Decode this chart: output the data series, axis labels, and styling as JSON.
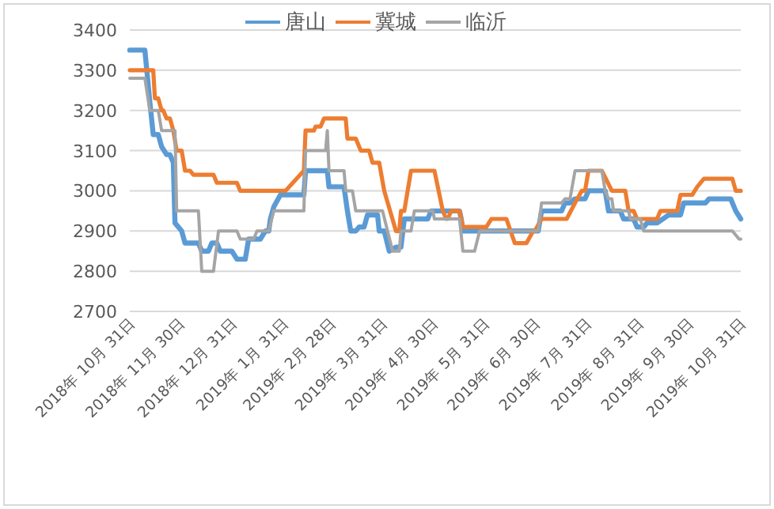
{
  "chart_data": {
    "type": "line",
    "legend": "top",
    "grid": "y",
    "line_style": "solid",
    "marker": "none",
    "ylim": [
      2700,
      3400
    ],
    "yticks": [
      2700,
      2800,
      2900,
      3000,
      3100,
      3200,
      3300,
      3400
    ],
    "xlim": [
      "2018-10-31",
      "2019-10-31"
    ],
    "xticks": [
      {
        "value": "2018-10-31",
        "label": "2018年 10月 31日"
      },
      {
        "value": "2018-11-30",
        "label": "2018年 11月 30日"
      },
      {
        "value": "2018-12-31",
        "label": "2018年 12月 31日"
      },
      {
        "value": "2019-01-31",
        "label": "2019年 1月 31日"
      },
      {
        "value": "2019-02-28",
        "label": "2019年 2月 28日"
      },
      {
        "value": "2019-03-31",
        "label": "2019年 3月 31日"
      },
      {
        "value": "2019-04-30",
        "label": "2019年 4月 30日"
      },
      {
        "value": "2019-05-31",
        "label": "2019年 5月 31日"
      },
      {
        "value": "2019-06-30",
        "label": "2019年 6月 30日"
      },
      {
        "value": "2019-07-31",
        "label": "2019年 7月 31日"
      },
      {
        "value": "2019-08-31",
        "label": "2019年 8月 31日"
      },
      {
        "value": "2019-09-30",
        "label": "2019年 9月 30日"
      },
      {
        "value": "2019-10-31",
        "label": "2019年 10月 31日"
      }
    ],
    "series": [
      {
        "name": "唐山",
        "color": "#5b9bd5",
        "x": [
          "2018-10-31",
          "2018-11-09",
          "2018-11-12",
          "2018-11-14",
          "2018-11-17",
          "2018-11-19",
          "2018-11-22",
          "2018-11-24",
          "2018-11-26",
          "2018-11-27",
          "2018-12-01",
          "2018-12-03",
          "2018-12-11",
          "2018-12-13",
          "2018-12-17",
          "2018-12-19",
          "2018-12-22",
          "2018-12-24",
          "2018-12-31",
          "2019-01-03",
          "2019-01-08",
          "2019-01-10",
          "2019-01-17",
          "2019-01-20",
          "2019-01-22",
          "2019-01-23",
          "2019-01-25",
          "2019-01-29",
          "2019-02-12",
          "2019-02-13",
          "2019-02-26",
          "2019-02-27",
          "2019-03-08",
          "2019-03-09",
          "2019-03-10",
          "2019-03-12",
          "2019-03-15",
          "2019-03-17",
          "2019-03-20",
          "2019-03-22",
          "2019-03-28",
          "2019-03-29",
          "2019-04-01",
          "2019-04-04",
          "2019-04-08",
          "2019-04-11",
          "2019-04-13",
          "2019-04-27",
          "2019-04-29",
          "2019-05-16",
          "2019-05-17",
          "2019-05-18",
          "2019-07-02",
          "2019-07-04",
          "2019-07-16",
          "2019-07-18",
          "2019-07-21",
          "2019-07-24",
          "2019-07-30",
          "2019-08-01",
          "2019-08-11",
          "2019-08-13",
          "2019-08-20",
          "2019-08-22",
          "2019-08-28",
          "2019-08-30",
          "2019-09-03",
          "2019-09-05",
          "2019-09-11",
          "2019-09-18",
          "2019-09-25",
          "2019-09-27",
          "2019-10-10",
          "2019-10-12",
          "2019-10-25",
          "2019-10-28",
          "2019-10-31"
        ],
        "values": [
          3350,
          3350,
          3220,
          3140,
          3140,
          3110,
          3090,
          3090,
          3070,
          2920,
          2900,
          2870,
          2870,
          2850,
          2850,
          2870,
          2870,
          2850,
          2850,
          2830,
          2830,
          2880,
          2880,
          2900,
          2900,
          2930,
          2960,
          2990,
          2990,
          3050,
          3050,
          3010,
          3010,
          2980,
          2950,
          2900,
          2900,
          2910,
          2910,
          2940,
          2940,
          2900,
          2900,
          2850,
          2860,
          2860,
          2930,
          2930,
          2950,
          2950,
          2930,
          2900,
          2900,
          2950,
          2950,
          2970,
          2970,
          2980,
          2980,
          3000,
          3000,
          2950,
          2950,
          2930,
          2930,
          2910,
          2910,
          2920,
          2920,
          2940,
          2940,
          2970,
          2970,
          2980,
          2980,
          2950,
          2930
        ]
      },
      {
        "name": "冀城",
        "color": "#ed7d31",
        "x": [
          "2018-10-31",
          "2018-11-14",
          "2018-11-15",
          "2018-11-17",
          "2018-11-19",
          "2018-11-20",
          "2018-11-22",
          "2018-11-24",
          "2018-11-26",
          "2018-11-28",
          "2018-12-01",
          "2018-12-03",
          "2018-12-06",
          "2018-12-08",
          "2018-12-20",
          "2018-12-22",
          "2019-01-03",
          "2019-01-05",
          "2019-02-01",
          "2019-02-12",
          "2019-02-13",
          "2019-02-18",
          "2019-02-19",
          "2019-02-22",
          "2019-02-24",
          "2019-03-09",
          "2019-03-10",
          "2019-03-15",
          "2019-03-18",
          "2019-03-23",
          "2019-03-25",
          "2019-03-29",
          "2019-04-01",
          "2019-04-08",
          "2019-04-10",
          "2019-04-11",
          "2019-04-13",
          "2019-04-15",
          "2019-04-17",
          "2019-05-01",
          "2019-05-06",
          "2019-05-08",
          "2019-05-09",
          "2019-05-11",
          "2019-05-16",
          "2019-05-18",
          "2019-06-01",
          "2019-06-04",
          "2019-06-13",
          "2019-06-18",
          "2019-06-25",
          "2019-06-29",
          "2019-06-30",
          "2019-07-04",
          "2019-07-19",
          "2019-07-24",
          "2019-07-28",
          "2019-07-30",
          "2019-08-01",
          "2019-08-09",
          "2019-08-15",
          "2019-08-23",
          "2019-08-25",
          "2019-08-28",
          "2019-08-30",
          "2019-09-11",
          "2019-09-13",
          "2019-09-23",
          "2019-09-25",
          "2019-10-02",
          "2019-10-05",
          "2019-10-09",
          "2019-10-26",
          "2019-10-28",
          "2019-10-31"
        ],
        "values": [
          3300,
          3300,
          3230,
          3230,
          3200,
          3200,
          3180,
          3180,
          3150,
          3100,
          3100,
          3050,
          3050,
          3040,
          3040,
          3020,
          3020,
          3000,
          3000,
          3050,
          3150,
          3150,
          3160,
          3160,
          3180,
          3180,
          3130,
          3130,
          3100,
          3100,
          3070,
          3070,
          3000,
          2900,
          2900,
          2950,
          2950,
          3000,
          3050,
          3050,
          2950,
          2930,
          2930,
          2950,
          2950,
          2910,
          2910,
          2930,
          2930,
          2870,
          2870,
          2900,
          2900,
          2930,
          2930,
          2970,
          3000,
          3000,
          3050,
          3050,
          3000,
          3000,
          2950,
          2950,
          2930,
          2930,
          2950,
          2950,
          2990,
          2990,
          3010,
          3030,
          3030,
          3000,
          3000
        ]
      },
      {
        "name": "临沂",
        "color": "#a5a5a5",
        "x": [
          "2018-10-31",
          "2018-11-09",
          "2018-11-12",
          "2018-11-17",
          "2018-11-19",
          "2018-11-27",
          "2018-11-28",
          "2018-12-11",
          "2018-12-13",
          "2018-12-20",
          "2018-12-23",
          "2019-01-03",
          "2019-01-05",
          "2019-01-13",
          "2019-01-15",
          "2019-01-22",
          "2019-01-25",
          "2019-02-12",
          "2019-02-13",
          "2019-02-25",
          "2019-02-26",
          "2019-02-27",
          "2019-03-08",
          "2019-03-09",
          "2019-03-13",
          "2019-03-15",
          "2019-03-31",
          "2019-04-03",
          "2019-04-06",
          "2019-04-10",
          "2019-04-11",
          "2019-04-17",
          "2019-04-19",
          "2019-04-30",
          "2019-05-01",
          "2019-05-16",
          "2019-05-18",
          "2019-05-25",
          "2019-05-28",
          "2019-07-02",
          "2019-07-04",
          "2019-07-16",
          "2019-07-18",
          "2019-07-21",
          "2019-07-24",
          "2019-08-09",
          "2019-08-11",
          "2019-08-13",
          "2019-08-15",
          "2019-08-16",
          "2019-08-25",
          "2019-08-26",
          "2019-09-01",
          "2019-09-03",
          "2019-10-26",
          "2019-10-30",
          "2019-10-31"
        ],
        "values": [
          3280,
          3280,
          3200,
          3200,
          3150,
          3150,
          2950,
          2950,
          2800,
          2800,
          2900,
          2900,
          2880,
          2880,
          2900,
          2900,
          2950,
          2950,
          3100,
          3100,
          3150,
          3050,
          3050,
          3000,
          3000,
          2950,
          2950,
          2900,
          2850,
          2850,
          2900,
          2900,
          2950,
          2950,
          2930,
          2930,
          2850,
          2850,
          2900,
          2900,
          2970,
          2970,
          2980,
          2980,
          3050,
          3050,
          3000,
          2980,
          2980,
          2950,
          2950,
          2930,
          2930,
          2900,
          2900,
          2880,
          2880
        ]
      }
    ]
  }
}
